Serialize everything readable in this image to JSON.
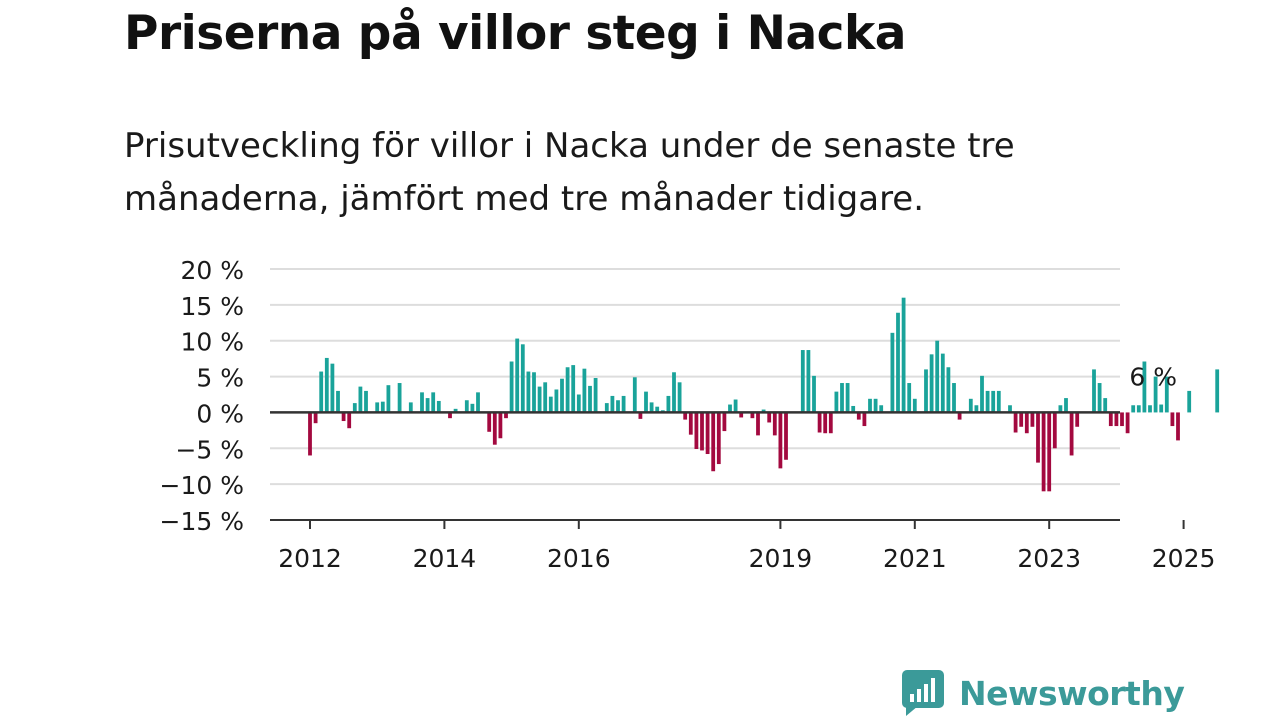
{
  "header": {
    "title": "Priserna på villor steg i Nacka",
    "subtitle": "Prisutveckling för villor i Nacka under de senaste tre månaderna, jämfört med tre månader tidigare."
  },
  "brand": {
    "name": "Newsworthy",
    "icon": "newsworthy-logo-icon",
    "color": "#3b9a99"
  },
  "colors": {
    "positive": "#1aa39a",
    "negative": "#a3093f",
    "grid": "#dddddd",
    "zero_line": "#333333"
  },
  "chart_data": {
    "type": "bar",
    "title": "",
    "xlabel": "",
    "ylabel": "",
    "ylim": [
      -15,
      20
    ],
    "y_ticks": [
      {
        "value": 20,
        "label": "20 %"
      },
      {
        "value": 15,
        "label": "15 %"
      },
      {
        "value": 10,
        "label": "10 %"
      },
      {
        "value": 5,
        "label": "5 %"
      },
      {
        "value": 0,
        "label": "0 %"
      },
      {
        "value": -5,
        "label": "−5 %"
      },
      {
        "value": -10,
        "label": "−10 %"
      },
      {
        "value": -15,
        "label": "−15 %"
      }
    ],
    "x_ticks": [
      "2012",
      "2014",
      "2016",
      "2019",
      "2021",
      "2023",
      "2025"
    ],
    "grid": true,
    "start": "2012-01",
    "frequency": "monthly",
    "values": [
      -6,
      -1.5,
      5.7,
      7.6,
      6.8,
      3,
      -1.2,
      -2.2,
      1.3,
      3.6,
      3,
      0,
      1.4,
      1.5,
      3.8,
      0,
      4.1,
      0,
      1.4,
      0,
      2.8,
      2,
      2.8,
      1.6,
      0,
      -0.8,
      0.5,
      0,
      1.7,
      1.2,
      2.8,
      0,
      -2.7,
      -4.5,
      -3.6,
      -0.8,
      7.1,
      10.3,
      9.5,
      5.7,
      5.6,
      3.6,
      4.2,
      2.2,
      3.2,
      4.7,
      6.3,
      6.6,
      2.5,
      6.1,
      3.7,
      4.8,
      0,
      1.3,
      2.3,
      1.7,
      2.3,
      0,
      4.9,
      -0.9,
      2.9,
      1.4,
      0.8,
      0.3,
      2.3,
      5.6,
      4.2,
      -1,
      -3.1,
      -5.1,
      -5.3,
      -5.8,
      -8.2,
      -7.2,
      -2.6,
      1.1,
      1.8,
      -0.7,
      0,
      -0.8,
      -3.2,
      0.4,
      -1.4,
      -3.2,
      -7.8,
      -6.6,
      0,
      0,
      8.7,
      8.7,
      5.1,
      -2.8,
      -2.9,
      -2.9,
      2.9,
      4.1,
      4.1,
      0.9,
      -1,
      -1.9,
      1.9,
      1.9,
      1,
      0,
      11.1,
      13.9,
      16,
      4.1,
      1.9,
      0,
      6,
      8.1,
      10,
      8.2,
      6.3,
      4.1,
      -1,
      0,
      1.9,
      1,
      5.1,
      3,
      3,
      3,
      0,
      1,
      -2.8,
      -2,
      -2.9,
      -2,
      -7,
      -11,
      -11,
      -5,
      1,
      2,
      -6,
      -2,
      0,
      0,
      6,
      4.1,
      2,
      -1.9,
      -1.9,
      -1.9,
      -2.9,
      1,
      1,
      7.1,
      1,
      5,
      1.1,
      5,
      -1.9,
      -3.9,
      0,
      3,
      0,
      0,
      0,
      0,
      6
    ],
    "annotation": {
      "index": 150,
      "label": "6 %"
    }
  }
}
